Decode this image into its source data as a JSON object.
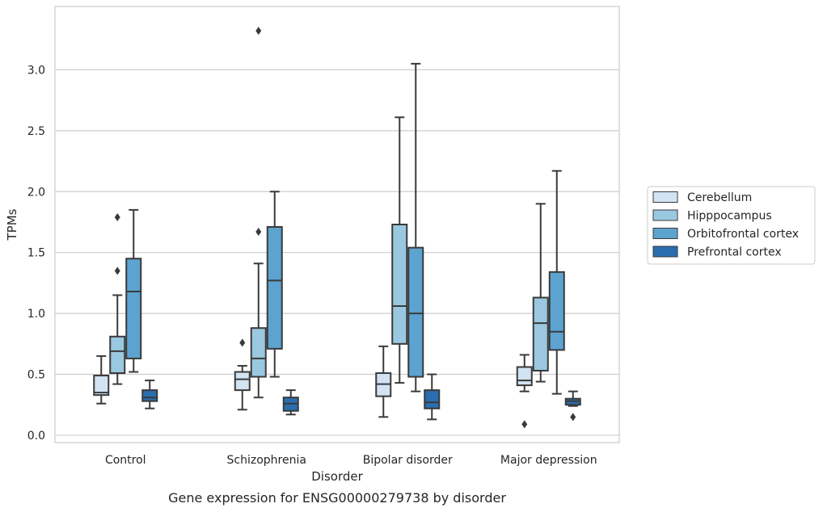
{
  "caption": "Gene expression for ENSG00000279738 by disorder",
  "colors": {
    "Cerebellum": "#d2e3f3",
    "Hipppocampus": "#9ac8e0",
    "Orbitofrontal cortex": "#5ca3d0",
    "Prefrontal cortex": "#2a6eaf",
    "line": "#3a3a3a",
    "grid": "#cccccc"
  },
  "chart_data": {
    "type": "box",
    "xlabel": "Disorder",
    "ylabel": "TPMs",
    "ylim": [
      -0.06,
      3.52
    ],
    "yticks": [
      0.0,
      0.5,
      1.0,
      1.5,
      2.0,
      2.5,
      3.0
    ],
    "ytick_labels": [
      "0.0",
      "0.5",
      "1.0",
      "1.5",
      "2.0",
      "2.5",
      "3.0"
    ],
    "grid": true,
    "legend_position": "right",
    "categories": [
      "Control",
      "Schizophrenia",
      "Bipolar disorder",
      "Major depression"
    ],
    "series": [
      {
        "name": "Cerebellum",
        "boxes": [
          {
            "whislo": 0.26,
            "q1": 0.33,
            "med": 0.35,
            "q3": 0.49,
            "whishi": 0.65,
            "fliers": []
          },
          {
            "whislo": 0.21,
            "q1": 0.37,
            "med": 0.46,
            "q3": 0.52,
            "whishi": 0.57,
            "fliers": [
              0.76
            ]
          },
          {
            "whislo": 0.15,
            "q1": 0.32,
            "med": 0.42,
            "q3": 0.51,
            "whishi": 0.73,
            "fliers": []
          },
          {
            "whislo": 0.36,
            "q1": 0.41,
            "med": 0.45,
            "q3": 0.56,
            "whishi": 0.66,
            "fliers": [
              0.09
            ]
          }
        ]
      },
      {
        "name": "Hipppocampus",
        "boxes": [
          {
            "whislo": 0.42,
            "q1": 0.51,
            "med": 0.69,
            "q3": 0.81,
            "whishi": 1.15,
            "fliers": [
              1.35,
              1.79
            ]
          },
          {
            "whislo": 0.31,
            "q1": 0.48,
            "med": 0.63,
            "q3": 0.88,
            "whishi": 1.41,
            "fliers": [
              1.67,
              3.32
            ]
          },
          {
            "whislo": 0.43,
            "q1": 0.75,
            "med": 1.06,
            "q3": 1.73,
            "whishi": 2.61,
            "fliers": []
          },
          {
            "whislo": 0.44,
            "q1": 0.53,
            "med": 0.92,
            "q3": 1.13,
            "whishi": 1.9,
            "fliers": []
          }
        ]
      },
      {
        "name": "Orbitofrontal cortex",
        "boxes": [
          {
            "whislo": 0.52,
            "q1": 0.63,
            "med": 1.18,
            "q3": 1.45,
            "whishi": 1.85,
            "fliers": []
          },
          {
            "whislo": 0.48,
            "q1": 0.71,
            "med": 1.27,
            "q3": 1.71,
            "whishi": 2.0,
            "fliers": []
          },
          {
            "whislo": 0.36,
            "q1": 0.48,
            "med": 1.0,
            "q3": 1.54,
            "whishi": 3.05,
            "fliers": []
          },
          {
            "whislo": 0.34,
            "q1": 0.7,
            "med": 0.85,
            "q3": 1.34,
            "whishi": 2.17,
            "fliers": []
          }
        ]
      },
      {
        "name": "Prefrontal cortex",
        "boxes": [
          {
            "whislo": 0.22,
            "q1": 0.28,
            "med": 0.31,
            "q3": 0.37,
            "whishi": 0.45,
            "fliers": []
          },
          {
            "whislo": 0.17,
            "q1": 0.2,
            "med": 0.26,
            "q3": 0.31,
            "whishi": 0.37,
            "fliers": []
          },
          {
            "whislo": 0.13,
            "q1": 0.22,
            "med": 0.27,
            "q3": 0.37,
            "whishi": 0.5,
            "fliers": []
          },
          {
            "whislo": 0.24,
            "q1": 0.25,
            "med": 0.28,
            "q3": 0.3,
            "whishi": 0.36,
            "fliers": [
              0.15
            ]
          }
        ]
      }
    ]
  }
}
